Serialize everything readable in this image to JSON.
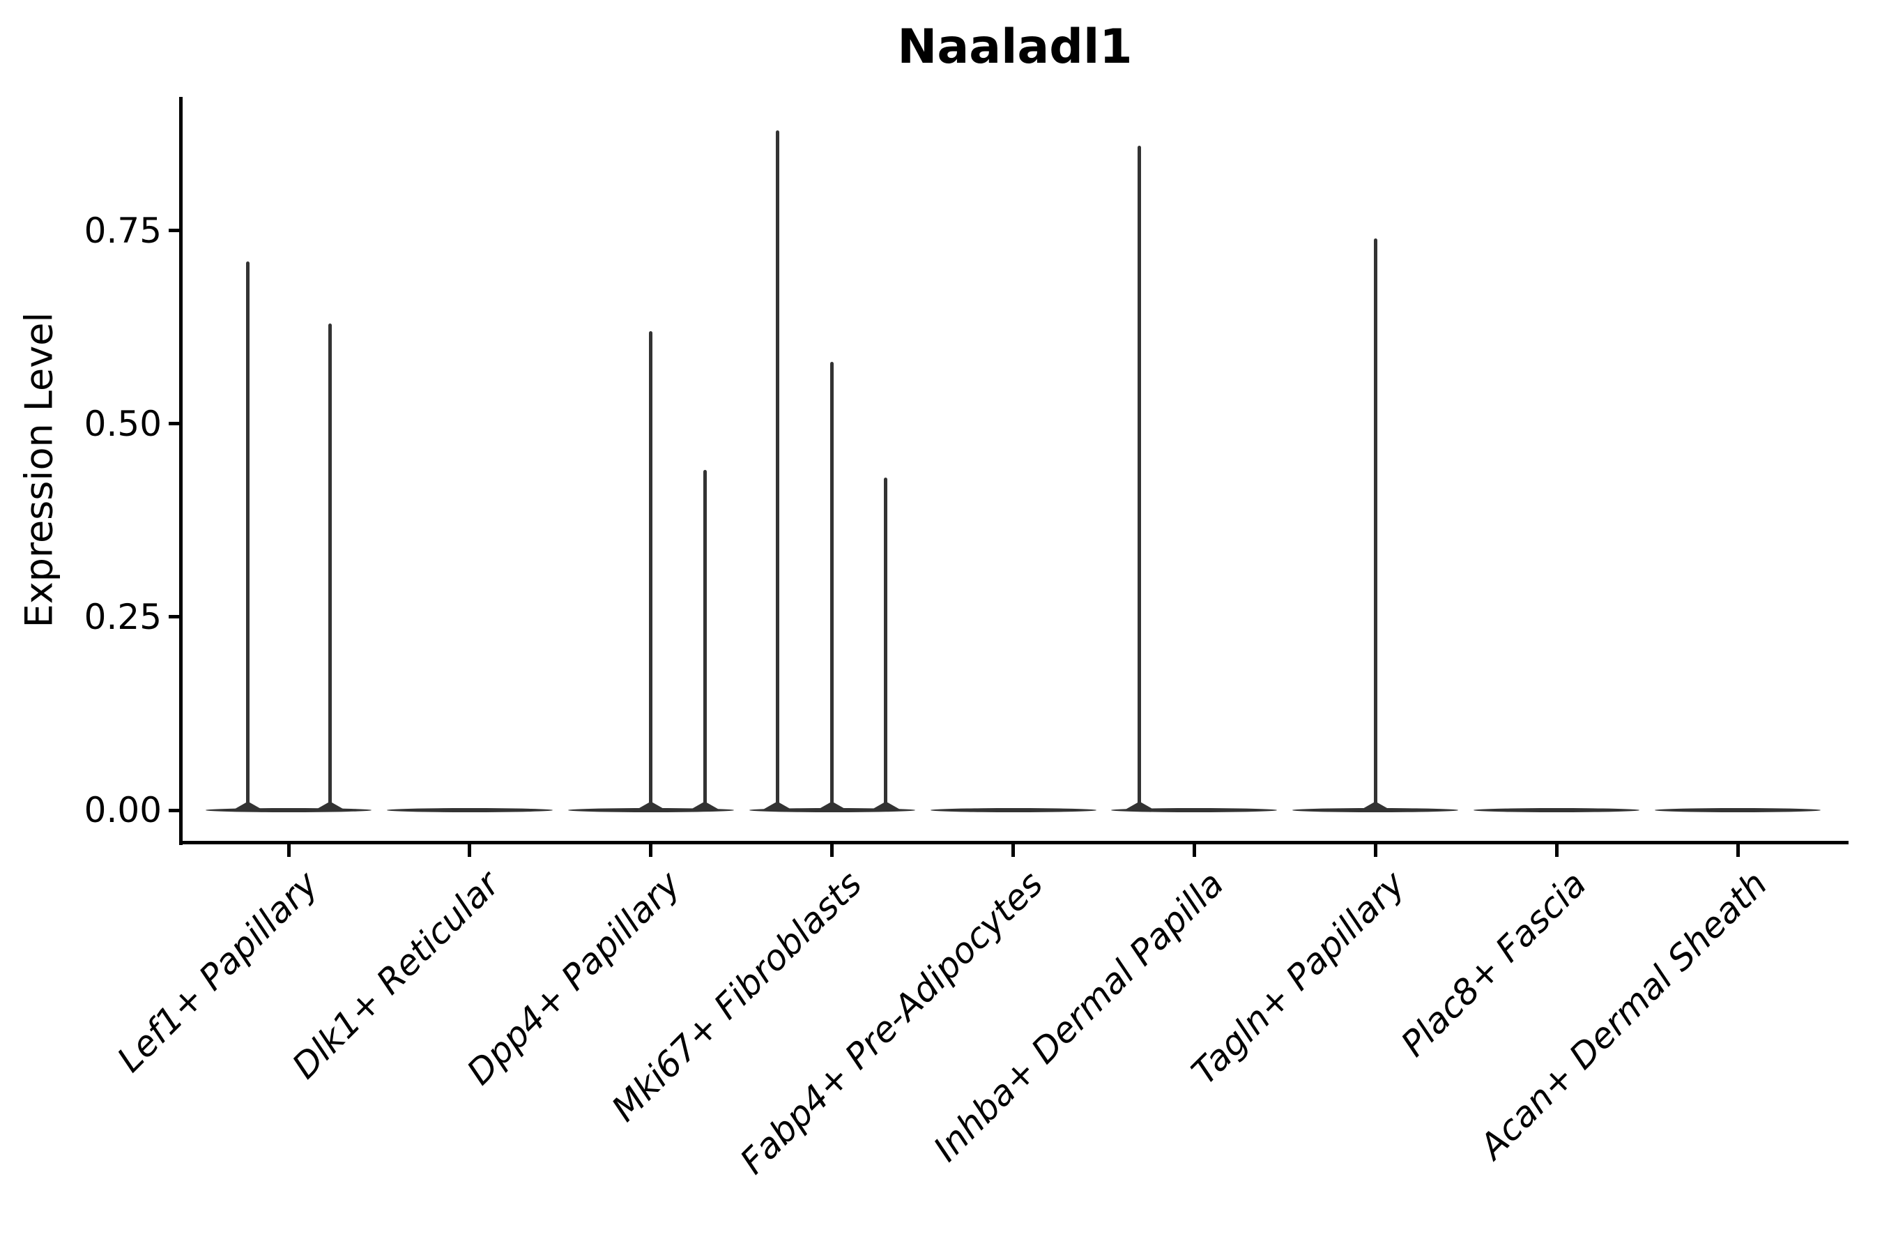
{
  "chart_data": {
    "type": "violin",
    "title": "Naaladl1",
    "xlabel": "",
    "ylabel": "Expression Level",
    "ylim": [
      -0.04,
      0.92
    ],
    "grid": false,
    "legend": "none",
    "ytick_labels": [
      "0.00",
      "0.25",
      "0.50",
      "0.75"
    ],
    "ytick_values": [
      0,
      0.25,
      0.5,
      0.75
    ],
    "categories": [
      "Lef1+ Papillary",
      "Dlk1+ Reticular",
      "Dpp4+ Papillary",
      "Mki67+ Fibroblasts",
      "Fabp4+ Pre-Adipocytes",
      "Inhba+ Dermal Papilla",
      "Tagln+ Papillary",
      "Plac8+ Fascia",
      "Acan+ Dermal Sheath"
    ],
    "violins": [
      {
        "category": "Lef1+ Papillary",
        "baseline_value": 0,
        "peaks": [
          {
            "offset": -0.49,
            "value": 0.71
          },
          {
            "offset": 0.5,
            "value": 0.63
          }
        ]
      },
      {
        "category": "Dlk1+ Reticular",
        "baseline_value": 0,
        "peaks": []
      },
      {
        "category": "Dpp4+ Papillary",
        "baseline_value": 0,
        "peaks": [
          {
            "offset": 0.0,
            "value": 0.62
          },
          {
            "offset": 0.65,
            "value": 0.44
          }
        ]
      },
      {
        "category": "Mki67+ Fibroblasts",
        "baseline_value": 0,
        "peaks": [
          {
            "offset": -0.66,
            "value": 0.88
          },
          {
            "offset": 0.0,
            "value": 0.58
          },
          {
            "offset": 0.65,
            "value": 0.43
          }
        ]
      },
      {
        "category": "Fabp4+ Pre-Adipocytes",
        "baseline_value": 0,
        "peaks": []
      },
      {
        "category": "Inhba+ Dermal Papilla",
        "baseline_value": 0,
        "peaks": [
          {
            "offset": -0.66,
            "value": 0.86
          }
        ]
      },
      {
        "category": "Tagln+ Papillary",
        "baseline_value": 0,
        "peaks": [
          {
            "offset": 0.0,
            "value": 0.74
          }
        ]
      },
      {
        "category": "Plac8+ Fascia",
        "baseline_value": 0,
        "peaks": []
      },
      {
        "category": "Acan+ Dermal Sheath",
        "baseline_value": 0,
        "peaks": []
      }
    ],
    "colors": {
      "violin_line": "#333333",
      "axis": "#000000",
      "background": "#ffffff",
      "text": "#000000"
    }
  }
}
